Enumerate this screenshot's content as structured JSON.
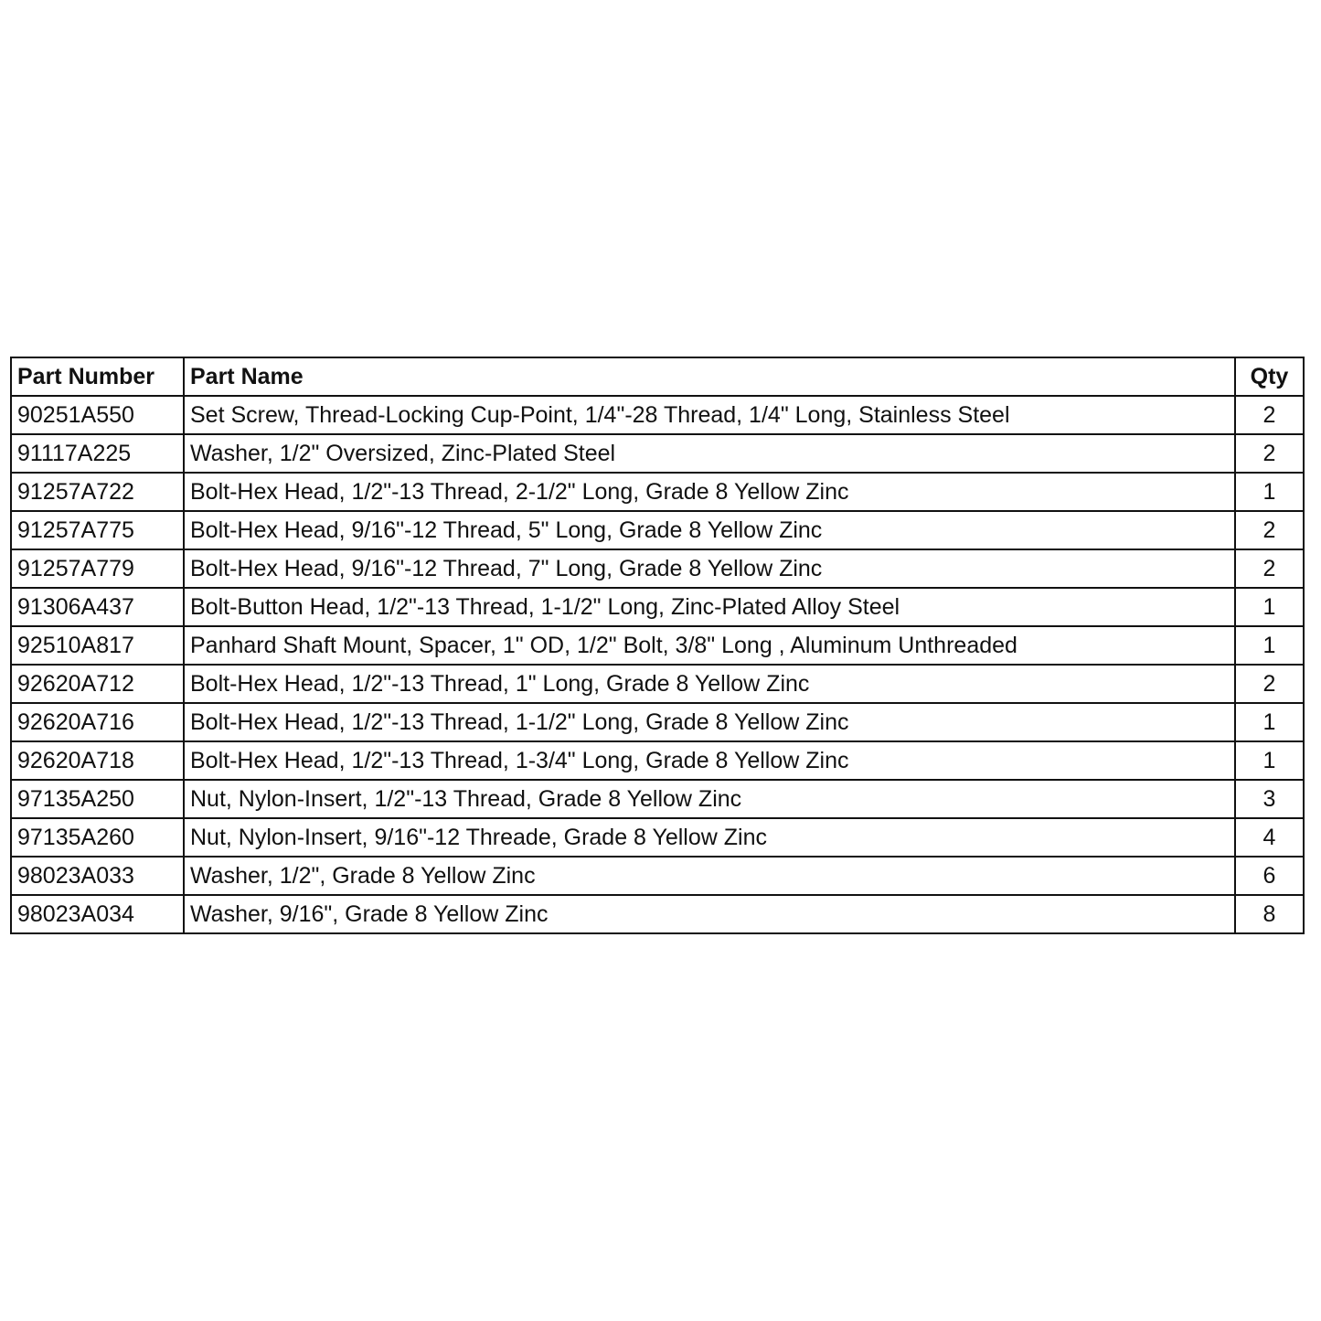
{
  "table": {
    "headers": [
      "Part Number",
      "Part Name",
      "Qty"
    ],
    "rows": [
      {
        "part_number": "90251A550",
        "part_name": "Set Screw, Thread-Locking Cup-Point, 1/4\"-28 Thread, 1/4\" Long, Stainless Steel",
        "qty": "2"
      },
      {
        "part_number": "91117A225",
        "part_name": "Washer, 1/2\" Oversized, Zinc-Plated Steel",
        "qty": "2"
      },
      {
        "part_number": "91257A722",
        "part_name": "Bolt-Hex Head, 1/2\"-13 Thread, 2-1/2\" Long, Grade 8 Yellow Zinc",
        "qty": "1"
      },
      {
        "part_number": "91257A775",
        "part_name": "Bolt-Hex Head, 9/16\"-12 Thread, 5\" Long, Grade 8 Yellow Zinc",
        "qty": "2"
      },
      {
        "part_number": "91257A779",
        "part_name": "Bolt-Hex Head, 9/16\"-12 Thread, 7\" Long, Grade 8 Yellow Zinc",
        "qty": "2"
      },
      {
        "part_number": "91306A437",
        "part_name": "Bolt-Button Head, 1/2\"-13 Thread, 1-1/2\" Long, Zinc-Plated Alloy Steel",
        "qty": "1"
      },
      {
        "part_number": "92510A817",
        "part_name": "Panhard Shaft Mount, Spacer, 1\" OD, 1/2\" Bolt, 3/8\" Long , Aluminum Unthreaded",
        "qty": "1"
      },
      {
        "part_number": "92620A712",
        "part_name": "Bolt-Hex Head, 1/2\"-13 Thread, 1\" Long, Grade 8 Yellow Zinc",
        "qty": "2"
      },
      {
        "part_number": "92620A716",
        "part_name": "Bolt-Hex Head, 1/2\"-13 Thread, 1-1/2\" Long, Grade 8 Yellow Zinc",
        "qty": "1"
      },
      {
        "part_number": "92620A718",
        "part_name": "Bolt-Hex Head, 1/2\"-13 Thread, 1-3/4\" Long, Grade 8 Yellow Zinc",
        "qty": "1"
      },
      {
        "part_number": "97135A250",
        "part_name": "Nut, Nylon-Insert, 1/2\"-13 Thread, Grade 8 Yellow Zinc",
        "qty": "3"
      },
      {
        "part_number": "97135A260",
        "part_name": "Nut, Nylon-Insert, 9/16\"-12 Threade, Grade 8 Yellow Zinc",
        "qty": "4"
      },
      {
        "part_number": "98023A033",
        "part_name": "Washer, 1/2\", Grade 8 Yellow Zinc",
        "qty": "6"
      },
      {
        "part_number": "98023A034",
        "part_name": "Washer, 9/16\", Grade 8 Yellow Zinc",
        "qty": "8"
      }
    ]
  }
}
